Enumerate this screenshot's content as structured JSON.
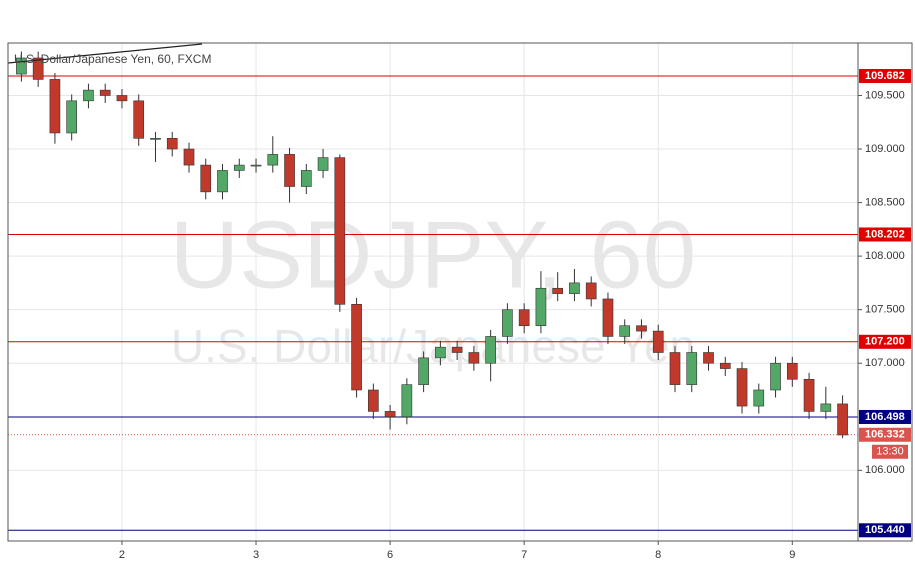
{
  "chart_data": {
    "type": "candlestick",
    "title": "U.S. Dollar/Japanese Yen, 60, FXCM",
    "watermark": "USDJPY, 60",
    "watermark_subtitle": "U.S. Dollar/Japanese Yen",
    "x": [
      0.25,
      0.375,
      0.5,
      0.625,
      0.75,
      0.875,
      1.0,
      1.125,
      1.25,
      1.375,
      1.5,
      1.625,
      1.75,
      1.875,
      2.0,
      2.125,
      2.25,
      2.375,
      2.5,
      2.625,
      2.75,
      2.875,
      3.0,
      3.125,
      3.25,
      3.375,
      3.5,
      3.625,
      3.75,
      3.875,
      4.0,
      4.125,
      4.25,
      4.375,
      4.5,
      4.625,
      4.75,
      4.875,
      5.0,
      5.125,
      5.25,
      5.375,
      5.5,
      5.625,
      5.75,
      5.875,
      6.0,
      6.125,
      6.25,
      6.375
    ],
    "open": [
      109.7,
      109.85,
      109.65,
      109.15,
      109.45,
      109.55,
      109.5,
      109.45,
      109.1,
      109.1,
      109.0,
      108.85,
      108.6,
      108.8,
      108.85,
      108.85,
      108.95,
      108.65,
      108.8,
      108.92,
      107.55,
      106.75,
      106.55,
      106.5,
      106.8,
      107.05,
      107.15,
      107.1,
      107.0,
      107.25,
      107.5,
      107.35,
      107.7,
      107.65,
      107.75,
      107.6,
      107.25,
      107.35,
      107.3,
      107.1,
      106.8,
      107.1,
      107.0,
      106.95,
      106.6,
      106.75,
      107.0,
      106.85,
      106.55,
      106.62
    ],
    "high": [
      109.91,
      109.91,
      109.71,
      109.51,
      109.61,
      109.61,
      109.56,
      109.51,
      109.16,
      109.16,
      109.06,
      108.91,
      108.86,
      108.91,
      108.91,
      109.12,
      109.01,
      108.86,
      109.0,
      108.95,
      107.61,
      106.81,
      106.61,
      106.86,
      107.11,
      107.21,
      107.21,
      107.16,
      107.31,
      107.56,
      107.56,
      107.86,
      107.85,
      107.88,
      107.81,
      107.66,
      107.41,
      107.41,
      107.36,
      107.16,
      107.16,
      107.16,
      107.06,
      107.01,
      106.81,
      107.06,
      107.06,
      106.91,
      106.78,
      106.7
    ],
    "low": [
      109.63,
      109.58,
      109.05,
      109.08,
      109.38,
      109.43,
      109.38,
      109.03,
      108.88,
      108.93,
      108.78,
      108.53,
      108.53,
      108.73,
      108.78,
      108.78,
      108.5,
      108.58,
      108.73,
      107.48,
      106.68,
      106.48,
      106.38,
      106.43,
      106.73,
      106.98,
      107.03,
      106.93,
      106.83,
      107.18,
      107.28,
      107.28,
      107.58,
      107.58,
      107.53,
      107.18,
      107.18,
      107.23,
      107.03,
      106.73,
      106.73,
      106.93,
      106.88,
      106.53,
      106.53,
      106.68,
      106.78,
      106.48,
      106.48,
      106.3
    ],
    "close": [
      109.85,
      109.65,
      109.15,
      109.45,
      109.55,
      109.5,
      109.45,
      109.1,
      109.1,
      109.0,
      108.85,
      108.6,
      108.8,
      108.85,
      108.85,
      108.95,
      108.65,
      108.8,
      108.92,
      107.55,
      106.75,
      106.55,
      106.5,
      106.8,
      107.05,
      107.15,
      107.1,
      107.0,
      107.25,
      107.5,
      107.35,
      107.7,
      107.65,
      107.75,
      107.6,
      107.25,
      107.35,
      107.3,
      107.1,
      106.8,
      107.1,
      107.0,
      106.95,
      106.6,
      106.75,
      107.0,
      106.85,
      106.55,
      106.62,
      106.33
    ],
    "up_color": "#53a868",
    "down_color": "#c0392b",
    "xlim": [
      0.15,
      6.49
    ],
    "ylim": [
      105.34,
      109.99
    ],
    "xticks": [
      {
        "value": 1,
        "label": "2"
      },
      {
        "value": 2,
        "label": "3"
      },
      {
        "value": 3,
        "label": "6"
      },
      {
        "value": 4,
        "label": "7"
      },
      {
        "value": 5,
        "label": "8"
      },
      {
        "value": 6,
        "label": "9"
      }
    ],
    "yticks": [
      {
        "value": 106,
        "label": "106.000"
      },
      {
        "value": 107,
        "label": "107.000"
      },
      {
        "value": 107.5,
        "label": "107.500"
      },
      {
        "value": 108,
        "label": "108.000"
      },
      {
        "value": 108.5,
        "label": "108.500"
      },
      {
        "value": 109,
        "label": "109.000"
      },
      {
        "value": 109.5,
        "label": "109.500"
      }
    ],
    "grid": true,
    "levels": [
      {
        "value": 109.682,
        "label": "109.682",
        "color": "#e00000"
      },
      {
        "value": 108.202,
        "label": "108.202",
        "color": "#e00000"
      },
      {
        "value": 107.2,
        "label": "107.200",
        "color": "#e00000"
      },
      {
        "value": 106.498,
        "label": "106.498",
        "color": "#000080"
      },
      {
        "value": 105.44,
        "label": "105.440",
        "color": "#000080"
      }
    ],
    "last_price": {
      "value": 106.332,
      "label": "106.332",
      "color": "#d9534f"
    },
    "countdown": "13:30"
  }
}
